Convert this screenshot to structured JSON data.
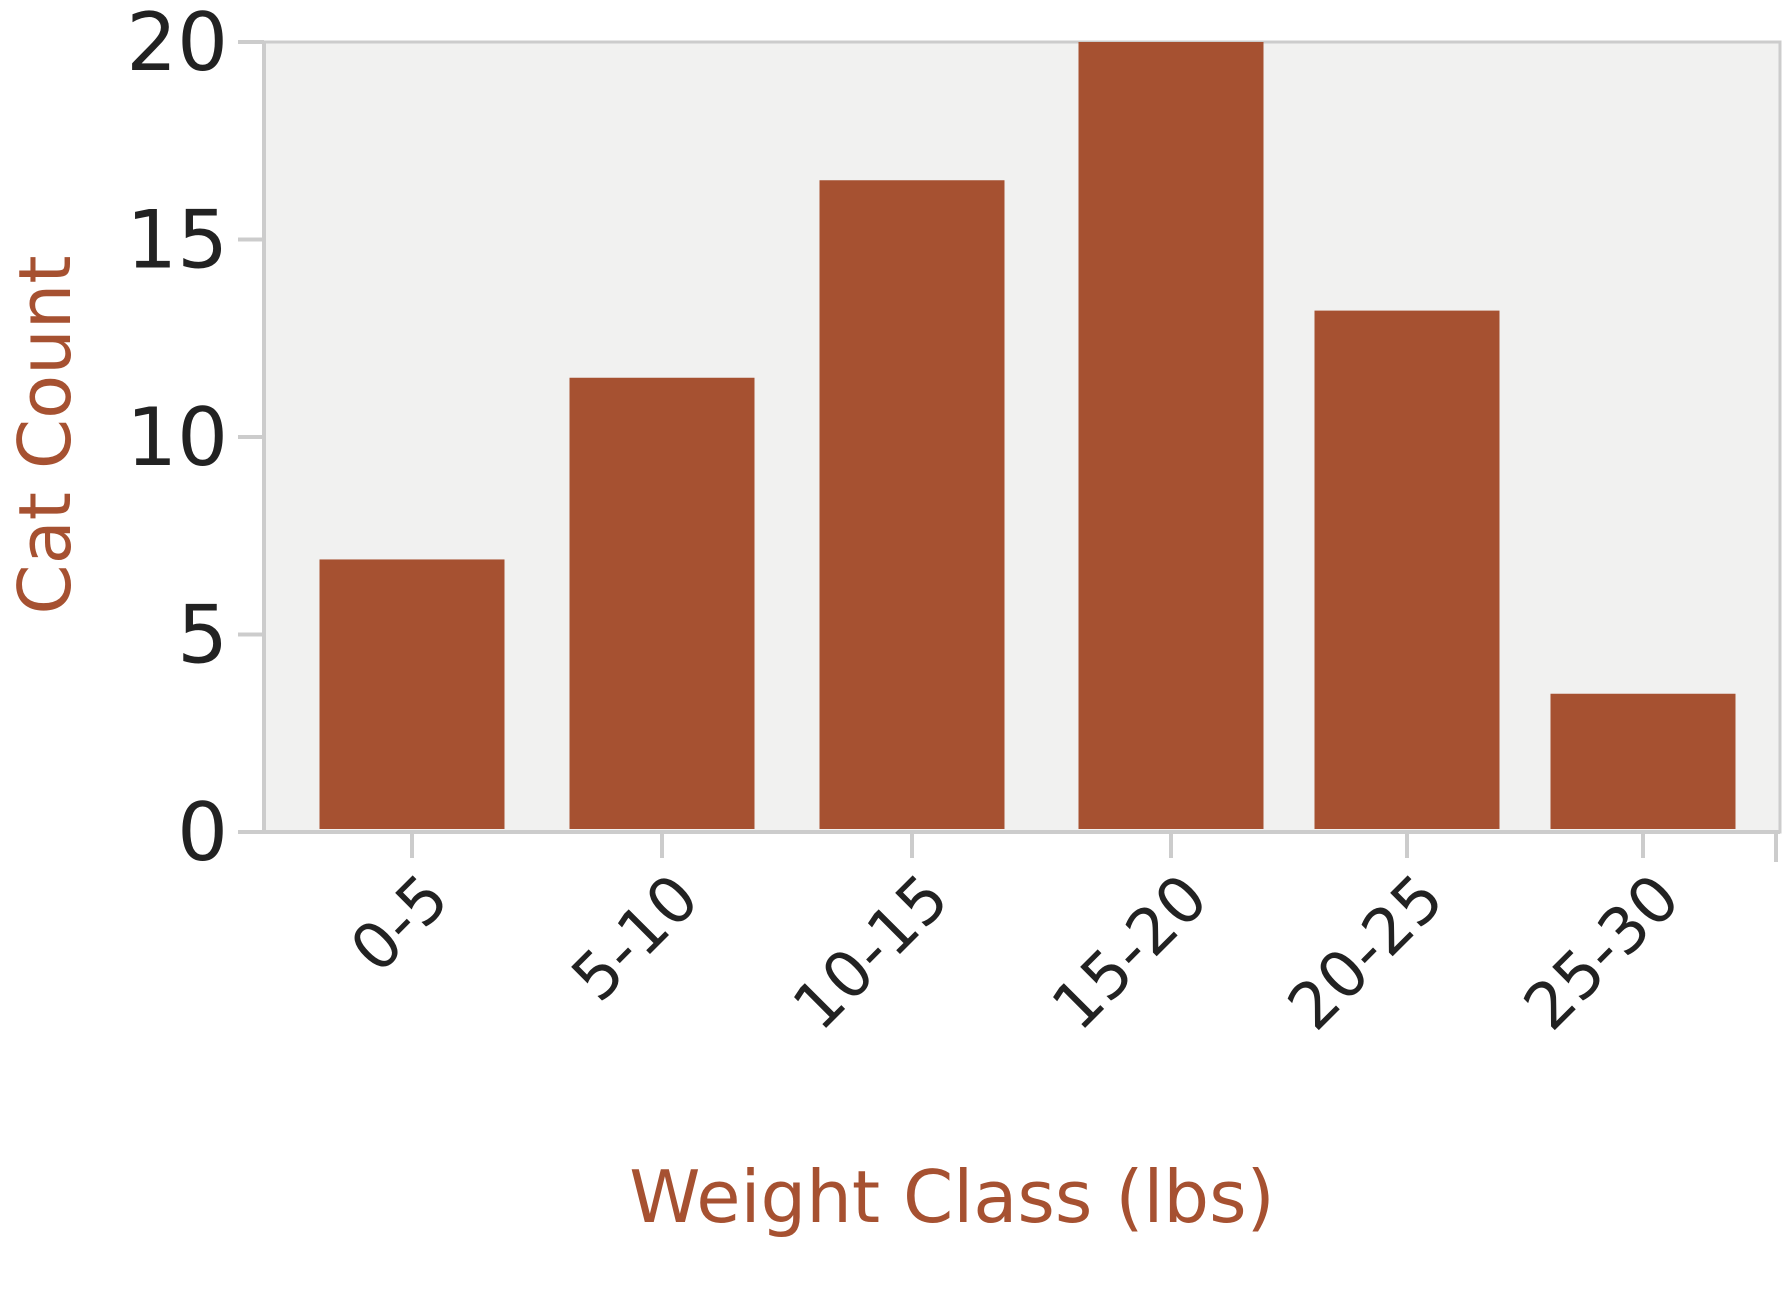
{
  "chart_data": {
    "type": "bar",
    "title": "",
    "xlabel": "Weight Class (lbs)",
    "ylabel": "Cat Count",
    "categories": [
      "0-5",
      "5-10",
      "10-15",
      "15-20",
      "20-25",
      "25-30"
    ],
    "values": [
      6.9,
      11.5,
      16.5,
      20.0,
      13.2,
      3.5
    ],
    "ylim": [
      0,
      20
    ],
    "yticks": [
      "0",
      "5",
      "10",
      "15",
      "20"
    ],
    "grid": false,
    "legend": "none",
    "colors": {
      "bar": "#a65131",
      "axis_title": "#a65131",
      "plot_background": "#f1f1f0",
      "axis_line": "#cccccc",
      "tick_label": "#222222"
    }
  }
}
